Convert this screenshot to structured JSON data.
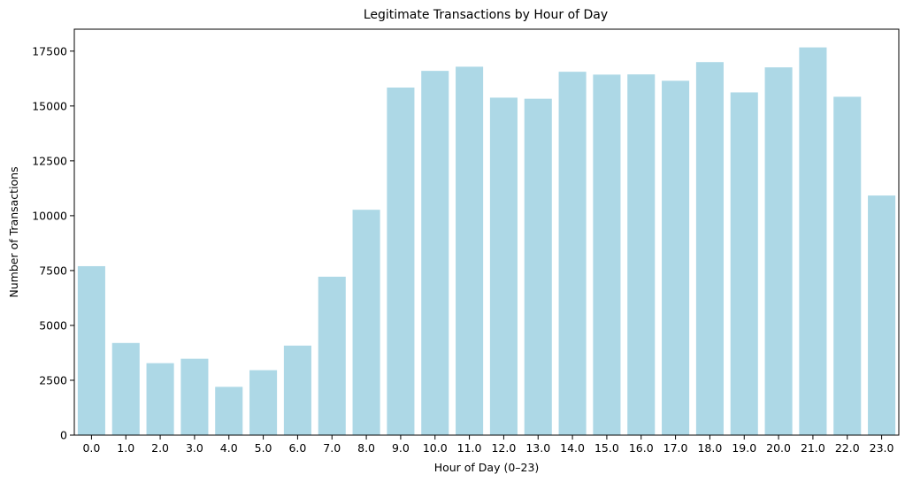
{
  "chart_data": {
    "type": "bar",
    "title": "Legitimate Transactions by Hour of Day",
    "xlabel": "Hour of Day (0–23)",
    "ylabel": "Number of Transactions",
    "categories": [
      "0.0",
      "1.0",
      "2.0",
      "3.0",
      "4.0",
      "5.0",
      "6.0",
      "7.0",
      "8.0",
      "9.0",
      "10.0",
      "11.0",
      "12.0",
      "13.0",
      "14.0",
      "15.0",
      "16.0",
      "17.0",
      "18.0",
      "19.0",
      "20.0",
      "21.0",
      "22.0",
      "23.0"
    ],
    "values": [
      7700,
      4200,
      3280,
      3480,
      2200,
      2960,
      4080,
      7220,
      10270,
      15840,
      16600,
      16790,
      15380,
      15330,
      16560,
      16430,
      16440,
      16150,
      17000,
      15620,
      16760,
      17670,
      15420,
      10920
    ],
    "ylim": [
      0,
      18500
    ],
    "yticks": [
      0,
      2500,
      5000,
      7500,
      10000,
      12500,
      15000,
      17500
    ],
    "bar_color": "#add8e6",
    "grid": false,
    "legend": "none"
  }
}
